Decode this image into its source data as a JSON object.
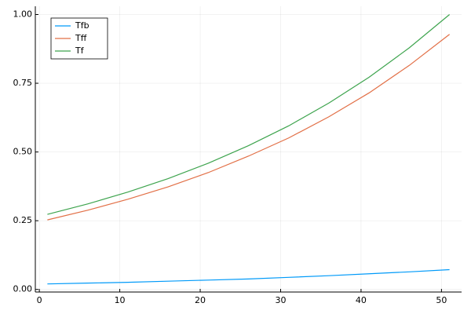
{
  "chart_data": {
    "type": "line",
    "x": [
      1,
      6,
      11,
      16,
      21,
      26,
      31,
      36,
      41,
      46,
      51
    ],
    "series": [
      {
        "name": "Tfb",
        "color": "#009af9",
        "values": [
          0.02,
          0.023,
          0.026,
          0.03,
          0.034,
          0.038,
          0.044,
          0.05,
          0.057,
          0.064,
          0.072
        ]
      },
      {
        "name": "Tff",
        "color": "#e26f46",
        "values": [
          0.253,
          0.288,
          0.328,
          0.373,
          0.425,
          0.485,
          0.551,
          0.628,
          0.715,
          0.815,
          0.928
        ]
      },
      {
        "name": "Tf",
        "color": "#3ea44e",
        "values": [
          0.273,
          0.311,
          0.354,
          0.403,
          0.459,
          0.523,
          0.595,
          0.678,
          0.772,
          0.879,
          1.0
        ]
      }
    ],
    "xlim": [
      -0.5,
      52.5
    ],
    "xticks": [
      0,
      10,
      20,
      30,
      40,
      50
    ],
    "ylim": [
      -0.0094,
      1.03
    ],
    "yticks": [
      {
        "value": 0,
        "label": "0.00"
      },
      {
        "value": 0.25,
        "label": "0.25"
      },
      {
        "value": 0.5,
        "label": "0.50"
      },
      {
        "value": 0.75,
        "label": "0.75"
      },
      {
        "value": 1,
        "label": "1.00"
      }
    ],
    "grid": true,
    "legend": "top-left"
  }
}
